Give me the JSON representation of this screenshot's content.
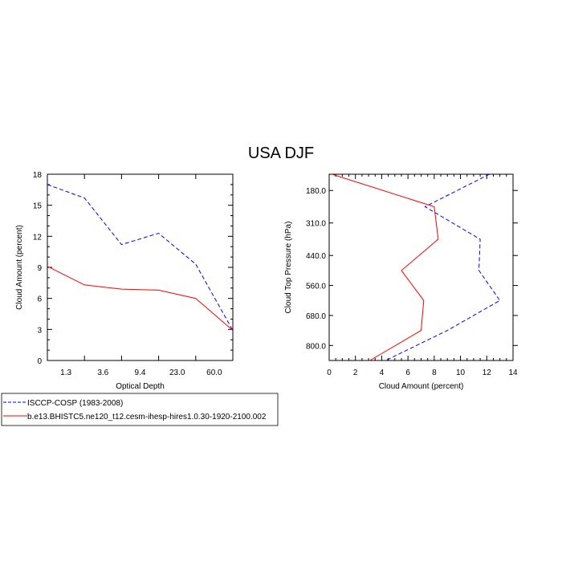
{
  "figure": {
    "title": "USA DJF"
  },
  "legend": {
    "placement": "bottom-left",
    "entries": [
      {
        "label": "ISCCP-COSP (1983-2008)",
        "color": "#0000ff",
        "style": "dashed"
      },
      {
        "label": "b.e13.BHISTC5.ne120_t12.cesm-ihesp-hires1.0.30-1920-2100.002",
        "color": "#ff0000",
        "style": "solid"
      }
    ]
  },
  "chart_data": [
    {
      "type": "line",
      "xlabel": "Optical Depth",
      "ylabel": "Cloud Amount (percent)",
      "x_tick_labels": [
        "1.3",
        "3.6",
        "9.4",
        "23.0",
        "60.0"
      ],
      "ylim": [
        0,
        18
      ],
      "y_ticks": [
        0,
        3,
        6,
        9,
        12,
        15,
        18
      ],
      "x_positions": [
        0,
        1,
        2,
        3,
        4,
        5
      ],
      "series": [
        {
          "name": "ISCCP-COSP (1983-2008)",
          "color": "#0000ff",
          "style": "dashed",
          "values": [
            17.0,
            15.7,
            11.2,
            12.3,
            9.3,
            2.9
          ]
        },
        {
          "name": "b.e13.BHISTC5.ne120_t12.cesm-ihesp-hires1.0.30-1920-2100.002",
          "color": "#ff0000",
          "style": "solid",
          "values": [
            9.1,
            7.3,
            6.9,
            6.8,
            6.0,
            2.9
          ]
        }
      ]
    },
    {
      "type": "line",
      "xlabel": "Cloud Amount (percent)",
      "ylabel": "Cloud Top Pressure (hPa)",
      "xlim": [
        0,
        14
      ],
      "x_ticks": [
        0,
        2,
        4,
        6,
        8,
        10,
        12,
        14
      ],
      "y_tick_labels": [
        "180.0",
        "310.0",
        "440.0",
        "560.0",
        "680.0",
        "800.0"
      ],
      "y_tick_pressures": [
        180,
        310,
        440,
        560,
        680,
        800
      ],
      "series": [
        {
          "name": "ISCCP-COSP (1983-2008)",
          "color": "#0000ff",
          "style": "dashed",
          "pressure": [
            115,
            245,
            375,
            500,
            620,
            740,
            860
          ],
          "values": [
            12.2,
            7.3,
            11.5,
            11.4,
            13.0,
            9.0,
            4.3
          ]
        },
        {
          "name": "b.e13.BHISTC5.ne120_t12.cesm-ihesp-hires1.0.30-1920-2100.002",
          "color": "#ff0000",
          "style": "solid",
          "pressure": [
            115,
            245,
            375,
            500,
            620,
            740,
            860
          ],
          "values": [
            0.2,
            8.0,
            8.3,
            5.5,
            7.2,
            7.0,
            3.1
          ]
        }
      ]
    }
  ]
}
